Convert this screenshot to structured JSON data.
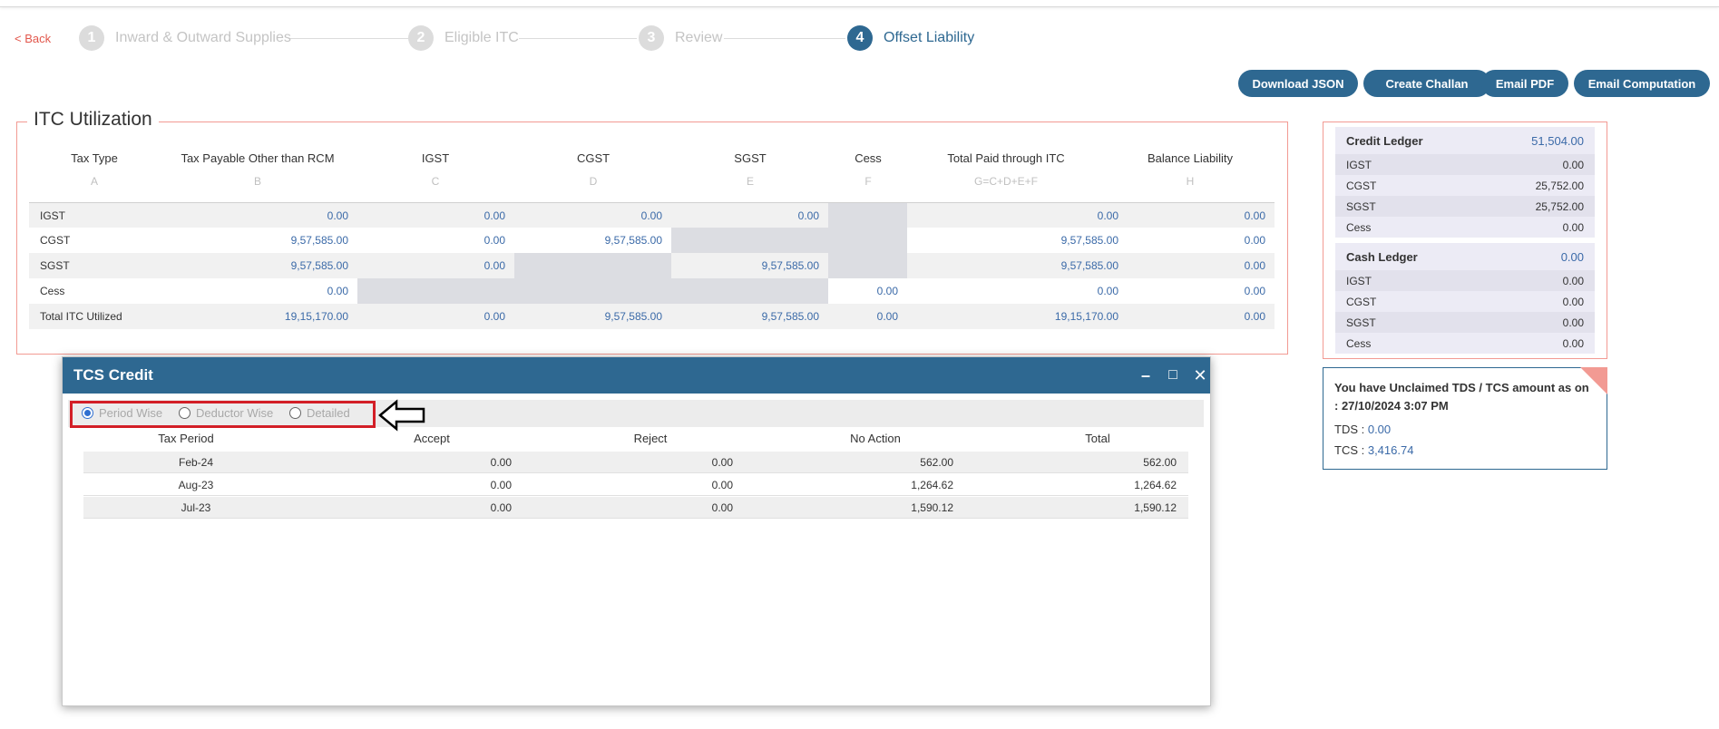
{
  "nav": {
    "back_label": "< Back"
  },
  "steps": [
    {
      "num": "1",
      "label": "Inward & Outward Supplies"
    },
    {
      "num": "2",
      "label": "Eligible ITC"
    },
    {
      "num": "3",
      "label": "Review"
    },
    {
      "num": "4",
      "label": "Offset Liability"
    }
  ],
  "actions": {
    "download_json": "Download JSON",
    "create_challan": "Create Challan",
    "email_pdf": "Email PDF",
    "email_computation": "Email Computation"
  },
  "itc": {
    "title": "ITC Utilization",
    "columns": [
      {
        "head": "Tax Type",
        "sub": "A"
      },
      {
        "head": "Tax Payable Other than RCM",
        "sub": "B"
      },
      {
        "head": "IGST",
        "sub": "C"
      },
      {
        "head": "CGST",
        "sub": "D"
      },
      {
        "head": "SGST",
        "sub": "E"
      },
      {
        "head": "Cess",
        "sub": "F"
      },
      {
        "head": "Total Paid through ITC",
        "sub": "G=C+D+E+F"
      },
      {
        "head": "Balance Liability",
        "sub": "H"
      }
    ],
    "rows": [
      {
        "type": "IGST",
        "payable": "0.00",
        "igst": "0.00",
        "cgst": "0.00",
        "sgst": "0.00",
        "cess": "",
        "total": "0.00",
        "balance": "0.00"
      },
      {
        "type": "CGST",
        "payable": "9,57,585.00",
        "igst": "0.00",
        "cgst": "9,57,585.00",
        "sgst": "",
        "cess": "",
        "total": "9,57,585.00",
        "balance": "0.00"
      },
      {
        "type": "SGST",
        "payable": "9,57,585.00",
        "igst": "0.00",
        "cgst": "",
        "sgst": "9,57,585.00",
        "cess": "",
        "total": "9,57,585.00",
        "balance": "0.00"
      },
      {
        "type": "Cess",
        "payable": "0.00",
        "igst": "",
        "cgst": "",
        "sgst": "",
        "cess": "0.00",
        "total": "0.00",
        "balance": "0.00"
      },
      {
        "type": "Total ITC Utilized",
        "payable": "19,15,170.00",
        "igst": "0.00",
        "cgst": "9,57,585.00",
        "sgst": "9,57,585.00",
        "cess": "0.00",
        "total": "19,15,170.00",
        "balance": "0.00"
      }
    ]
  },
  "credit_ledger": {
    "title": "Credit Ledger",
    "total": "51,504.00",
    "items": [
      {
        "label": "IGST",
        "value": "0.00"
      },
      {
        "label": "CGST",
        "value": "25,752.00"
      },
      {
        "label": "SGST",
        "value": "25,752.00"
      },
      {
        "label": "Cess",
        "value": "0.00"
      }
    ]
  },
  "cash_ledger": {
    "title": "Cash Ledger",
    "total": "0.00",
    "items": [
      {
        "label": "IGST",
        "value": "0.00"
      },
      {
        "label": "CGST",
        "value": "0.00"
      },
      {
        "label": "SGST",
        "value": "0.00"
      },
      {
        "label": "Cess",
        "value": "0.00"
      }
    ]
  },
  "unclaimed": {
    "message": "You have Unclaimed TDS / TCS amount as on : 27/10/2024 3:07 PM",
    "tds_label": "TDS : ",
    "tds_value": "0.00",
    "tcs_label": "TCS : ",
    "tcs_value": "3,416.74"
  },
  "tcs_modal": {
    "title": "TCS Credit",
    "controls": {
      "minimize": "–",
      "maximize": "□",
      "close": "✕"
    },
    "views": [
      {
        "label": "Period Wise",
        "checked": true
      },
      {
        "label": "Deductor Wise",
        "checked": false
      },
      {
        "label": "Detailed",
        "checked": false
      }
    ],
    "headers": [
      "Tax Period",
      "Accept",
      "Reject",
      "No Action",
      "Total"
    ],
    "rows": [
      {
        "period": "Feb-24",
        "accept": "0.00",
        "reject": "0.00",
        "no_action": "562.00",
        "total": "562.00"
      },
      {
        "period": "Aug-23",
        "accept": "0.00",
        "reject": "0.00",
        "no_action": "1,264.62",
        "total": "1,264.62"
      },
      {
        "period": "Jul-23",
        "accept": "0.00",
        "reject": "0.00",
        "no_action": "1,590.12",
        "total": "1,590.12"
      }
    ]
  }
}
